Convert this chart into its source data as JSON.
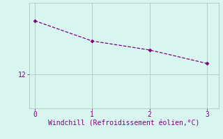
{
  "x": [
    0,
    1,
    2,
    3
  ],
  "y": [
    14.4,
    13.5,
    13.1,
    12.5
  ],
  "line_color": "#800080",
  "marker": "D",
  "marker_size": 2.5,
  "line_style": "--",
  "line_width": 0.9,
  "background_color": "#d8f5f0",
  "grid_color": "#aaccbb",
  "xlabel": "Windchill (Refroidissement éolien,°C)",
  "xlabel_color": "#800080",
  "xlabel_fontsize": 7,
  "tick_color": "#800080",
  "tick_fontsize": 7,
  "yticks": [
    12
  ],
  "xlim": [
    -0.1,
    3.2
  ],
  "ylim": [
    10.5,
    15.2
  ]
}
